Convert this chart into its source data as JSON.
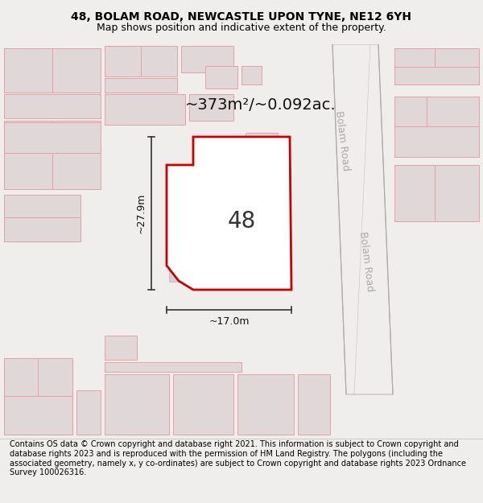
{
  "title_line1": "48, BOLAM ROAD, NEWCASTLE UPON TYNE, NE12 6YH",
  "title_line2": "Map shows position and indicative extent of the property.",
  "footer_text": "Contains OS data © Crown copyright and database right 2021. This information is subject to Crown copyright and database rights 2023 and is reproduced with the permission of HM Land Registry. The polygons (including the associated geometry, namely x, y co-ordinates) are subject to Crown copyright and database rights 2023 Ordnance Survey 100026316.",
  "area_label": "~373m²/~0.092ac.",
  "number_label": "48",
  "dim_height": "~27.9m",
  "dim_width": "~17.0m",
  "road_label_1": "Bolam Road",
  "road_label_2": "Bolam Road",
  "map_bg": "#ffffff",
  "page_bg": "#f0eded",
  "highlight_color": "#cc0000",
  "building_fill": "#e0d8d8",
  "building_stroke": "#e8a0a0",
  "road_fill": "#f5f2f2",
  "road_stroke": "#c8c0c0",
  "title_fontsize": 10,
  "subtitle_fontsize": 9,
  "footer_fontsize": 7,
  "area_fontsize": 14,
  "number_fontsize": 20,
  "dim_fontsize": 9
}
